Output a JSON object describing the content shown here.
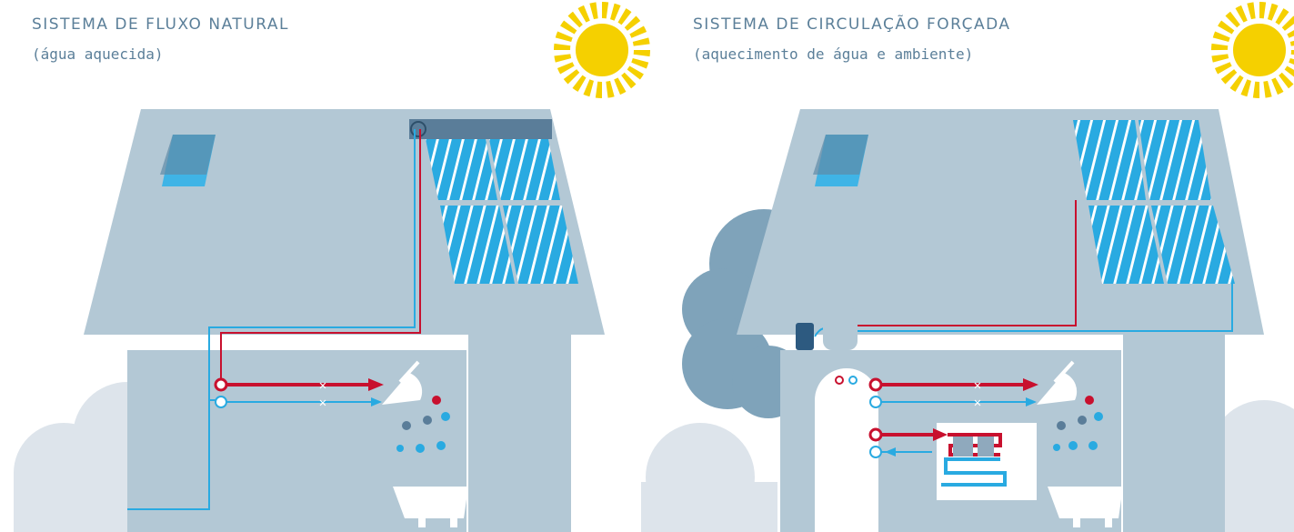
{
  "left": {
    "title": "SISTEMA DE FLUXO NATURAL",
    "subtitle": "(água aquecida)"
  },
  "right": {
    "title": "SISTEMA DE CIRCULAÇÃO FORÇADA",
    "subtitle": "(aquecimento de água e ambiente)"
  }
}
